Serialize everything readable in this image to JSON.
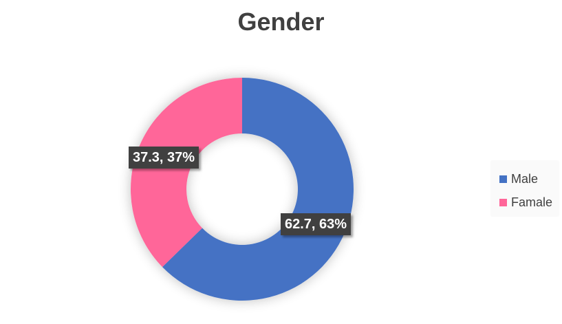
{
  "chart_data": {
    "type": "pie",
    "variant": "donut",
    "title": "Gender",
    "categories": [
      "Male",
      "Famale"
    ],
    "values": [
      62.7,
      37.3
    ],
    "percent_labels": [
      "63%",
      "37%"
    ],
    "data_labels": [
      "62.7, 63%",
      "37.3, 37%"
    ],
    "colors": [
      "#4472C4",
      "#FF6699"
    ],
    "legend_position": "right",
    "legend": [
      {
        "label": "Male",
        "color": "#4472C4"
      },
      {
        "label": "Famale",
        "color": "#FF6699"
      }
    ]
  }
}
